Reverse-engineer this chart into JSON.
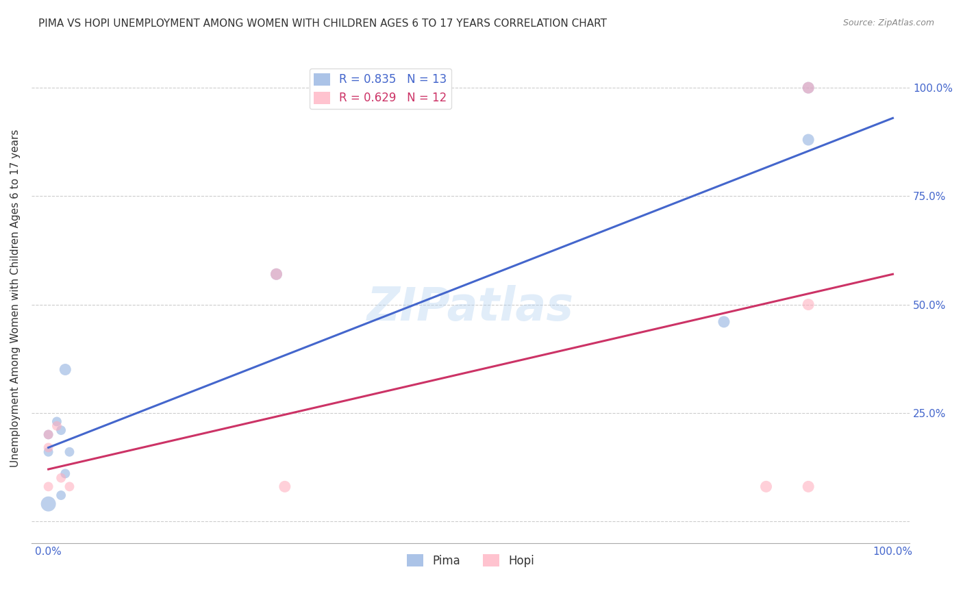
{
  "title": "PIMA VS HOPI UNEMPLOYMENT AMONG WOMEN WITH CHILDREN AGES 6 TO 17 YEARS CORRELATION CHART",
  "source": "Source: ZipAtlas.com",
  "ylabel": "Unemployment Among Women with Children Ages 6 to 17 years",
  "pima_color": "#88aadd",
  "hopi_color": "#ffaabb",
  "pima_line_color": "#4466cc",
  "hopi_line_color": "#cc3366",
  "legend_pima_label": "R = 0.835   N = 13",
  "legend_hopi_label": "R = 0.629   N = 12",
  "watermark": "ZIPatlas",
  "pima_x": [
    0.0,
    0.0,
    0.0,
    1.0,
    1.5,
    1.5,
    2.0,
    2.0,
    2.5,
    27.0,
    80.0,
    90.0,
    90.0
  ],
  "pima_y": [
    16.0,
    20.0,
    4.0,
    23.0,
    21.0,
    6.0,
    35.0,
    11.0,
    16.0,
    57.0,
    46.0,
    100.0,
    88.0
  ],
  "hopi_x": [
    0.0,
    0.0,
    0.0,
    1.0,
    1.5,
    2.5,
    27.0,
    28.0,
    85.0,
    90.0,
    90.0,
    90.0
  ],
  "hopi_y": [
    20.0,
    17.0,
    8.0,
    22.0,
    10.0,
    8.0,
    57.0,
    8.0,
    8.0,
    50.0,
    100.0,
    8.0
  ],
  "pima_sizes": [
    100,
    100,
    250,
    100,
    100,
    100,
    150,
    100,
    100,
    150,
    150,
    150,
    150
  ],
  "hopi_sizes": [
    100,
    100,
    100,
    100,
    100,
    100,
    150,
    150,
    150,
    150,
    150,
    150
  ],
  "pima_line_x0": 0.0,
  "pima_line_y0": 17.0,
  "pima_line_x1": 100.0,
  "pima_line_y1": 93.0,
  "hopi_line_x0": 0.0,
  "hopi_line_y0": 12.0,
  "hopi_line_x1": 100.0,
  "hopi_line_y1": 57.0,
  "xlim": [
    -2.0,
    102.0
  ],
  "ylim": [
    -5.0,
    108.0
  ],
  "xtick_positions": [
    0.0,
    10.0,
    20.0,
    30.0,
    40.0,
    50.0,
    60.0,
    70.0,
    80.0,
    90.0,
    100.0
  ],
  "xtick_labels": [
    "0.0%",
    "",
    "",
    "",
    "",
    "",
    "",
    "",
    "",
    "",
    "100.0%"
  ],
  "ytick_positions": [
    0.0,
    25.0,
    50.0,
    75.0,
    100.0
  ],
  "ytick_labels": [
    "",
    "25.0%",
    "50.0%",
    "75.0%",
    "100.0%"
  ],
  "background_color": "#ffffff",
  "grid_color": "#cccccc",
  "title_fontsize": 11,
  "axis_label_fontsize": 11,
  "tick_fontsize": 11,
  "legend_fontsize": 12,
  "source_fontsize": 9,
  "watermark_fontsize": 48,
  "tick_color": "#4466cc"
}
